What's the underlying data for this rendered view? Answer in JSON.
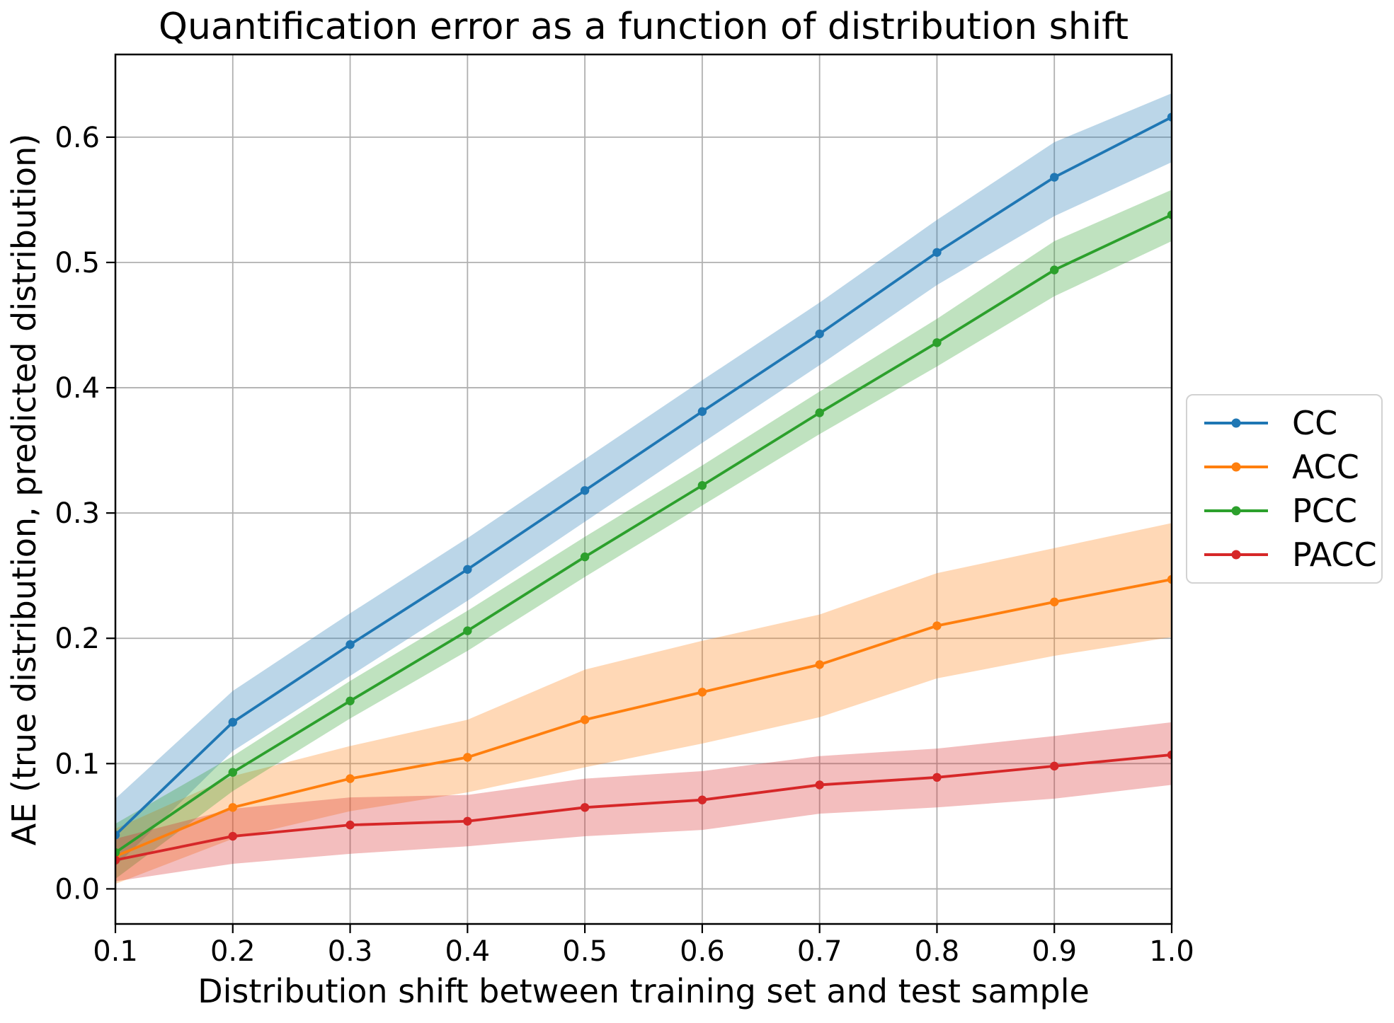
{
  "chart_data": {
    "type": "line",
    "title": "Quantification error as a function of distribution shift",
    "xlabel": "Distribution shift between training set and test sample",
    "ylabel": "AE (true distribution, predicted distribution)",
    "x": [
      0.1,
      0.2,
      0.3,
      0.4,
      0.5,
      0.6,
      0.7,
      0.8,
      0.9,
      1.0
    ],
    "xtick_labels": [
      "0.1",
      "0.2",
      "0.3",
      "0.4",
      "0.5",
      "0.6",
      "0.7",
      "0.8",
      "0.9",
      "1.0"
    ],
    "ytick_values": [
      0.0,
      0.1,
      0.2,
      0.3,
      0.4,
      0.5,
      0.6
    ],
    "ytick_labels": [
      "0.0",
      "0.1",
      "0.2",
      "0.3",
      "0.4",
      "0.5",
      "0.6"
    ],
    "xlim": [
      0.1,
      1.0
    ],
    "ylim": [
      -0.028,
      0.666
    ],
    "grid": true,
    "grid_color": "#b0b0b0",
    "legend_position": "right-outside",
    "band_opacity": 0.3,
    "series": [
      {
        "name": "CC",
        "color": "#1f77b4",
        "values": [
          0.043,
          0.133,
          0.195,
          0.255,
          0.318,
          0.381,
          0.443,
          0.508,
          0.568,
          0.616
        ],
        "band_lower": [
          0.018,
          0.11,
          0.17,
          0.23,
          0.293,
          0.356,
          0.418,
          0.482,
          0.537,
          0.58
        ],
        "band_upper": [
          0.072,
          0.158,
          0.22,
          0.28,
          0.343,
          0.406,
          0.468,
          0.534,
          0.596,
          0.635
        ]
      },
      {
        "name": "ACC",
        "color": "#ff7f0e",
        "values": [
          0.026,
          0.065,
          0.088,
          0.105,
          0.135,
          0.157,
          0.179,
          0.21,
          0.229,
          0.247
        ],
        "band_lower": [
          0.004,
          0.04,
          0.062,
          0.077,
          0.097,
          0.116,
          0.137,
          0.168,
          0.186,
          0.201
        ],
        "band_upper": [
          0.048,
          0.09,
          0.114,
          0.135,
          0.175,
          0.198,
          0.219,
          0.252,
          0.272,
          0.292
        ]
      },
      {
        "name": "PCC",
        "color": "#2ca02c",
        "values": [
          0.029,
          0.093,
          0.15,
          0.206,
          0.265,
          0.322,
          0.38,
          0.436,
          0.494,
          0.538
        ],
        "band_lower": [
          0.008,
          0.078,
          0.136,
          0.19,
          0.249,
          0.306,
          0.363,
          0.417,
          0.473,
          0.517
        ],
        "band_upper": [
          0.052,
          0.106,
          0.166,
          0.222,
          0.281,
          0.338,
          0.397,
          0.455,
          0.517,
          0.558
        ]
      },
      {
        "name": "PACC",
        "color": "#d62728",
        "values": [
          0.023,
          0.042,
          0.051,
          0.054,
          0.065,
          0.071,
          0.083,
          0.089,
          0.098,
          0.107
        ],
        "band_lower": [
          0.006,
          0.02,
          0.028,
          0.034,
          0.042,
          0.047,
          0.06,
          0.065,
          0.072,
          0.083
        ],
        "band_upper": [
          0.04,
          0.064,
          0.073,
          0.075,
          0.088,
          0.094,
          0.106,
          0.112,
          0.122,
          0.133
        ]
      }
    ]
  }
}
